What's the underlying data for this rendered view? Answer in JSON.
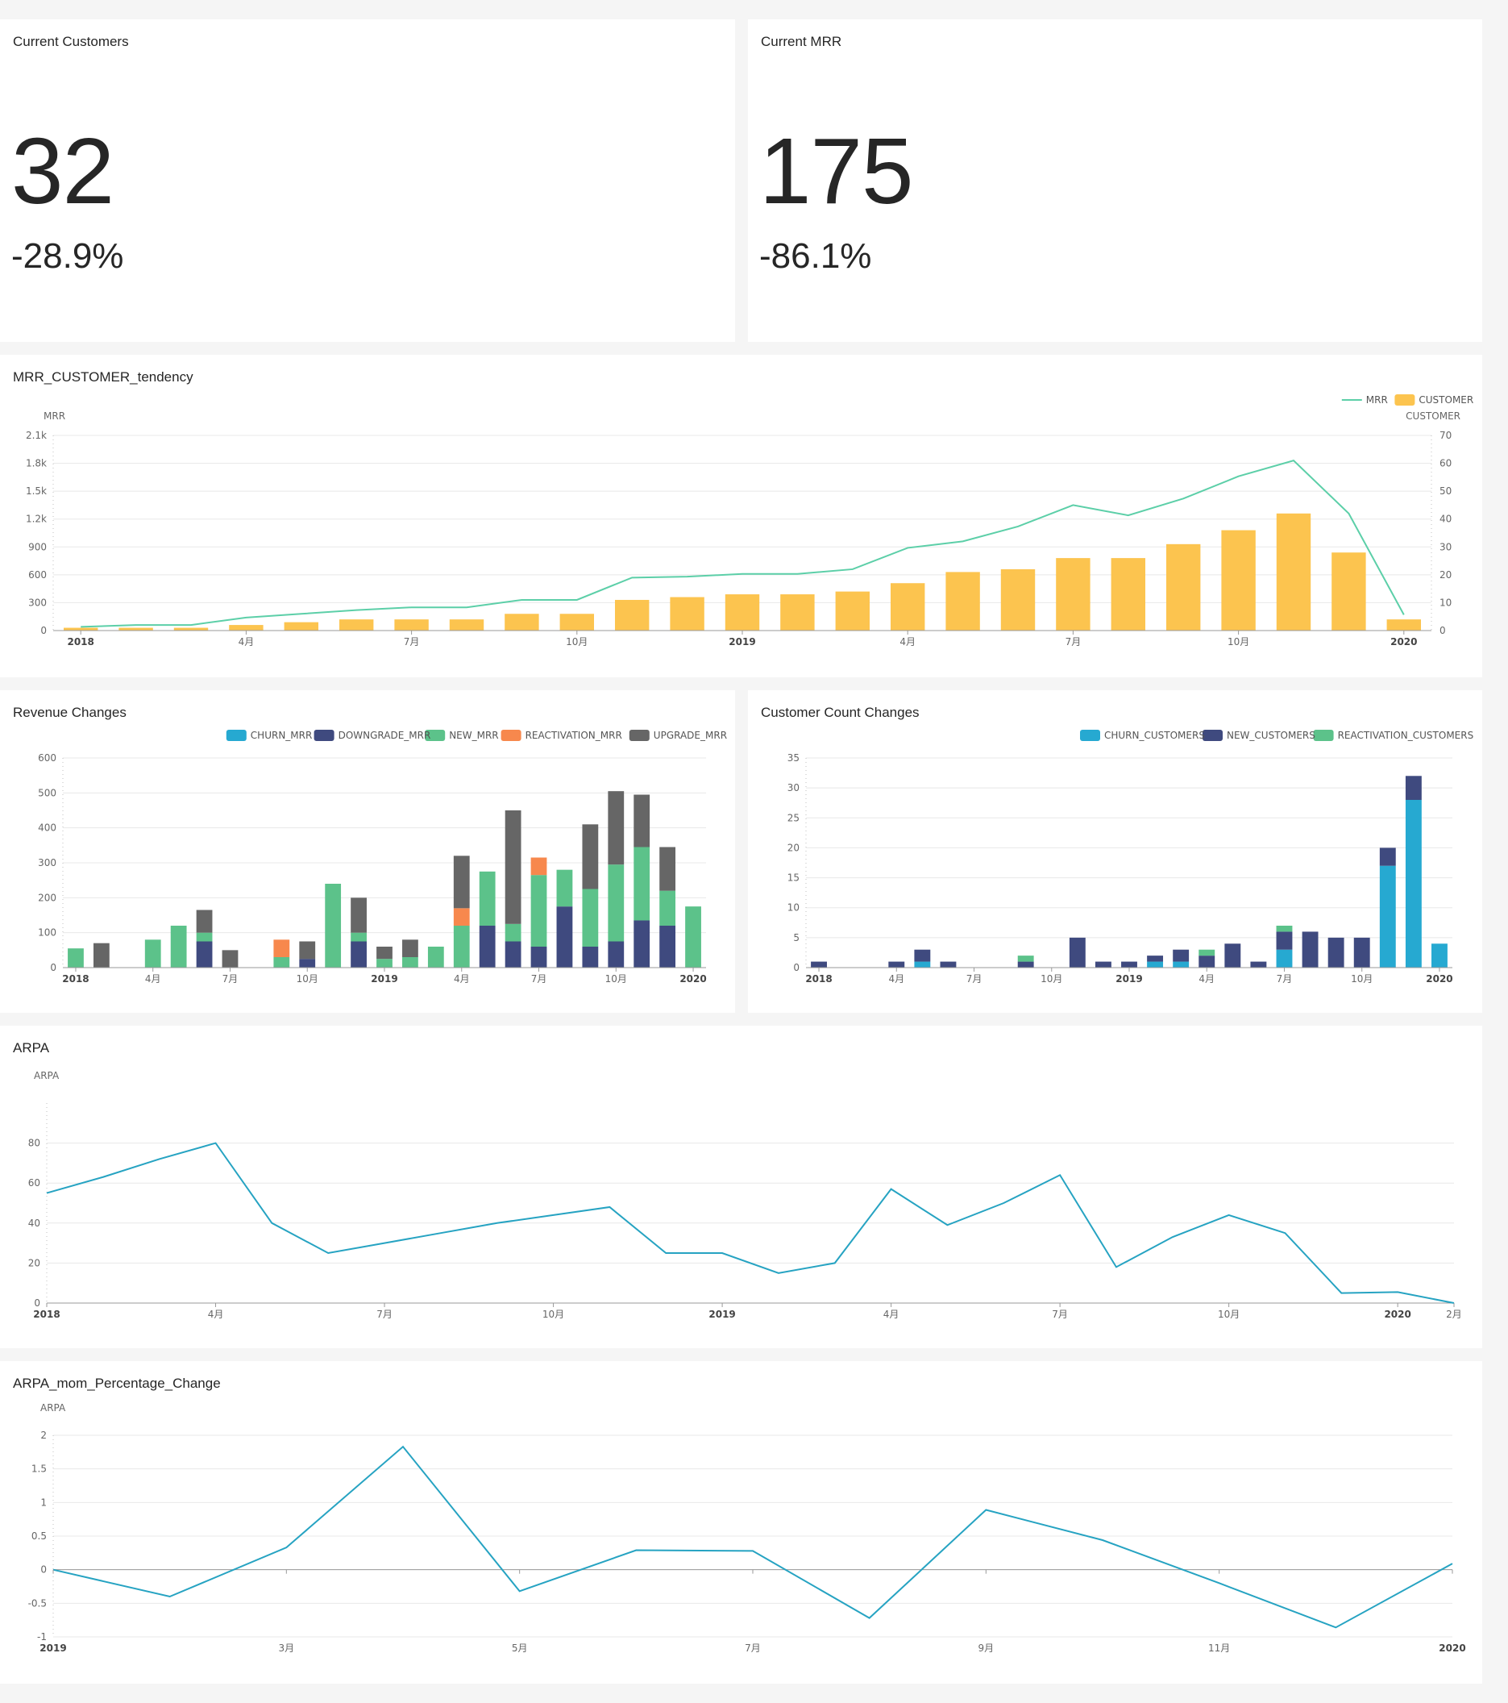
{
  "kpis": {
    "customers": {
      "title": "Current Customers",
      "value": "32",
      "change": "-28.9%"
    },
    "mrr": {
      "title": "Current MRR",
      "value": "175",
      "change": "-86.1%"
    }
  },
  "colors": {
    "mrr_line": "#5ccfa8",
    "customer_bar": "#fcc44f",
    "churn": "#26a9d1",
    "downgrade": "#3f4a7f",
    "new": "#5cc28a",
    "reactivation": "#f7884d",
    "upgrade": "#666666",
    "arpa_line": "#26a3c2",
    "grid": "#e8e8e8",
    "axis_text": "#666666"
  },
  "chart_data": [
    {
      "id": "tendency",
      "type": "bar+line",
      "title": "MRR_CUSTOMER_tendency",
      "ylabel_left": "MRR",
      "ylabel_right": "CUSTOMER",
      "legend": [
        "MRR",
        "CUSTOMER"
      ],
      "legend_position": "top-right",
      "x": [
        "2018-01",
        "2018-02",
        "2018-03",
        "2018-04",
        "2018-05",
        "2018-06",
        "2018-07",
        "2018-08",
        "2018-09",
        "2018-10",
        "2018-11",
        "2018-12",
        "2019-01",
        "2019-02",
        "2019-03",
        "2019-04",
        "2019-05",
        "2019-06",
        "2019-07",
        "2019-08",
        "2019-09",
        "2019-10",
        "2019-11",
        "2019-12",
        "2020-01"
      ],
      "x_tick_labels": [
        "2018",
        "4月",
        "7月",
        "10月",
        "2019",
        "4月",
        "7月",
        "10月",
        "2020"
      ],
      "x_tick_index": [
        0,
        3,
        6,
        9,
        12,
        15,
        18,
        21,
        24
      ],
      "left_ticks": [
        "0",
        "300",
        "600",
        "900",
        "1.2k",
        "1.5k",
        "1.8k",
        "2.1k"
      ],
      "right_ticks": [
        "0",
        "10",
        "20",
        "30",
        "40",
        "50",
        "60",
        "70"
      ],
      "ylim_left": [
        0,
        2100
      ],
      "ylim_right": [
        0,
        70
      ],
      "mrr": [
        40,
        60,
        60,
        140,
        180,
        220,
        250,
        250,
        330,
        330,
        570,
        580,
        610,
        610,
        660,
        890,
        960,
        1120,
        1350,
        1240,
        1420,
        1660,
        1830,
        1260,
        170
      ],
      "customers": [
        1,
        1,
        1,
        2,
        3,
        4,
        4,
        4,
        6,
        6,
        11,
        12,
        13,
        13,
        14,
        17,
        21,
        22,
        26,
        26,
        31,
        36,
        42,
        28,
        4
      ]
    },
    {
      "id": "revenue",
      "type": "stacked-bar",
      "title": "Revenue Changes",
      "legend": [
        "CHURN_MRR",
        "DOWNGRADE_MRR",
        "NEW_MRR",
        "REACTIVATION_MRR",
        "UPGRADE_MRR"
      ],
      "legend_position": "top-right",
      "x_tick_labels": [
        "2018",
        "4月",
        "7月",
        "10月",
        "2019",
        "4月",
        "7月",
        "10月",
        "2020"
      ],
      "x_tick_index": [
        0,
        3,
        6,
        9,
        12,
        15,
        18,
        21,
        24
      ],
      "y_ticks": [
        "0",
        "100",
        "200",
        "300",
        "400",
        "500",
        "600"
      ],
      "ylim": [
        0,
        600
      ],
      "series": [
        {
          "name": "DOWNGRADE_MRR",
          "values": [
            0,
            0,
            0,
            0,
            0,
            75,
            0,
            0,
            0,
            25,
            0,
            75,
            0,
            0,
            0,
            0,
            120,
            75,
            60,
            175,
            60,
            75,
            135,
            120,
            0
          ]
        },
        {
          "name": "NEW_MRR",
          "values": [
            55,
            0,
            0,
            80,
            120,
            25,
            0,
            0,
            30,
            0,
            240,
            25,
            25,
            30,
            60,
            120,
            155,
            50,
            205,
            105,
            165,
            220,
            210,
            100,
            175
          ]
        },
        {
          "name": "REACTIVATION_MRR",
          "values": [
            0,
            0,
            0,
            0,
            0,
            0,
            0,
            0,
            50,
            0,
            0,
            0,
            0,
            0,
            0,
            50,
            0,
            0,
            50,
            0,
            0,
            0,
            0,
            0,
            0
          ]
        },
        {
          "name": "UPGRADE_MRR",
          "values": [
            0,
            70,
            0,
            0,
            0,
            65,
            50,
            0,
            0,
            50,
            0,
            100,
            35,
            50,
            0,
            150,
            0,
            325,
            0,
            0,
            185,
            210,
            150,
            125,
            0
          ]
        }
      ]
    },
    {
      "id": "customers",
      "type": "stacked-bar",
      "title": "Customer Count Changes",
      "legend": [
        "CHURN_CUSTOMERS",
        "NEW_CUSTOMERS",
        "REACTIVATION_CUSTOMERS"
      ],
      "legend_position": "top-right",
      "x_tick_labels": [
        "2018",
        "4月",
        "7月",
        "10月",
        "2019",
        "4月",
        "7月",
        "10月",
        "2020"
      ],
      "x_tick_index": [
        0,
        3,
        6,
        9,
        12,
        15,
        18,
        21,
        24
      ],
      "y_ticks": [
        "0",
        "5",
        "10",
        "15",
        "20",
        "25",
        "30",
        "35"
      ],
      "ylim": [
        0,
        35
      ],
      "series": [
        {
          "name": "CHURN_CUSTOMERS",
          "values": [
            0,
            0,
            0,
            0,
            1,
            0,
            0,
            0,
            0,
            0,
            0,
            0,
            0,
            1,
            1,
            0,
            0,
            0,
            3,
            0,
            0,
            0,
            17,
            28,
            4
          ]
        },
        {
          "name": "NEW_CUSTOMERS",
          "values": [
            1,
            0,
            0,
            1,
            2,
            1,
            0,
            0,
            1,
            0,
            5,
            1,
            1,
            1,
            2,
            2,
            4,
            1,
            3,
            6,
            5,
            5,
            3,
            4,
            0
          ]
        },
        {
          "name": "REACTIVATION_CUSTOMERS",
          "values": [
            0,
            0,
            0,
            0,
            0,
            0,
            0,
            0,
            1,
            0,
            0,
            0,
            0,
            0,
            0,
            1,
            0,
            0,
            1,
            0,
            0,
            0,
            0,
            0,
            0
          ]
        }
      ]
    },
    {
      "id": "arpa",
      "type": "line",
      "title": "ARPA",
      "ylabel": "ARPA",
      "x_tick_labels": [
        "2018",
        "4月",
        "7月",
        "10月",
        "2019",
        "4月",
        "7月",
        "10月",
        "2020",
        "2月"
      ],
      "x_tick_index": [
        0,
        3,
        6,
        9,
        12,
        15,
        18,
        21,
        24,
        25
      ],
      "y_ticks": [
        "0",
        "20",
        "40",
        "60",
        "80"
      ],
      "ylim": [
        0,
        100
      ],
      "values": [
        55,
        63,
        72,
        80,
        40,
        25,
        30,
        35,
        40,
        44,
        48,
        25,
        25,
        15,
        20,
        57,
        39,
        50,
        64,
        18,
        33,
        44,
        35,
        5,
        5.5,
        0
      ]
    },
    {
      "id": "arpa_mom",
      "type": "line",
      "title": "ARPA_mom_Percentage_Change",
      "ylabel": "ARPA",
      "x_tick_labels": [
        "2019",
        "3月",
        "5月",
        "7月",
        "9月",
        "11月",
        "2020"
      ],
      "x_tick_index": [
        0,
        2,
        4,
        6,
        8,
        10,
        12
      ],
      "y_ticks": [
        "-1",
        "-0.5",
        "0",
        "0.5",
        "1",
        "1.5",
        "2"
      ],
      "ylim": [
        -1,
        2
      ],
      "values": [
        0,
        -0.4,
        0.33,
        1.83,
        -0.32,
        0.29,
        0.28,
        -0.72,
        0.89,
        0.44,
        -0.2,
        -0.86,
        0.09
      ]
    }
  ]
}
